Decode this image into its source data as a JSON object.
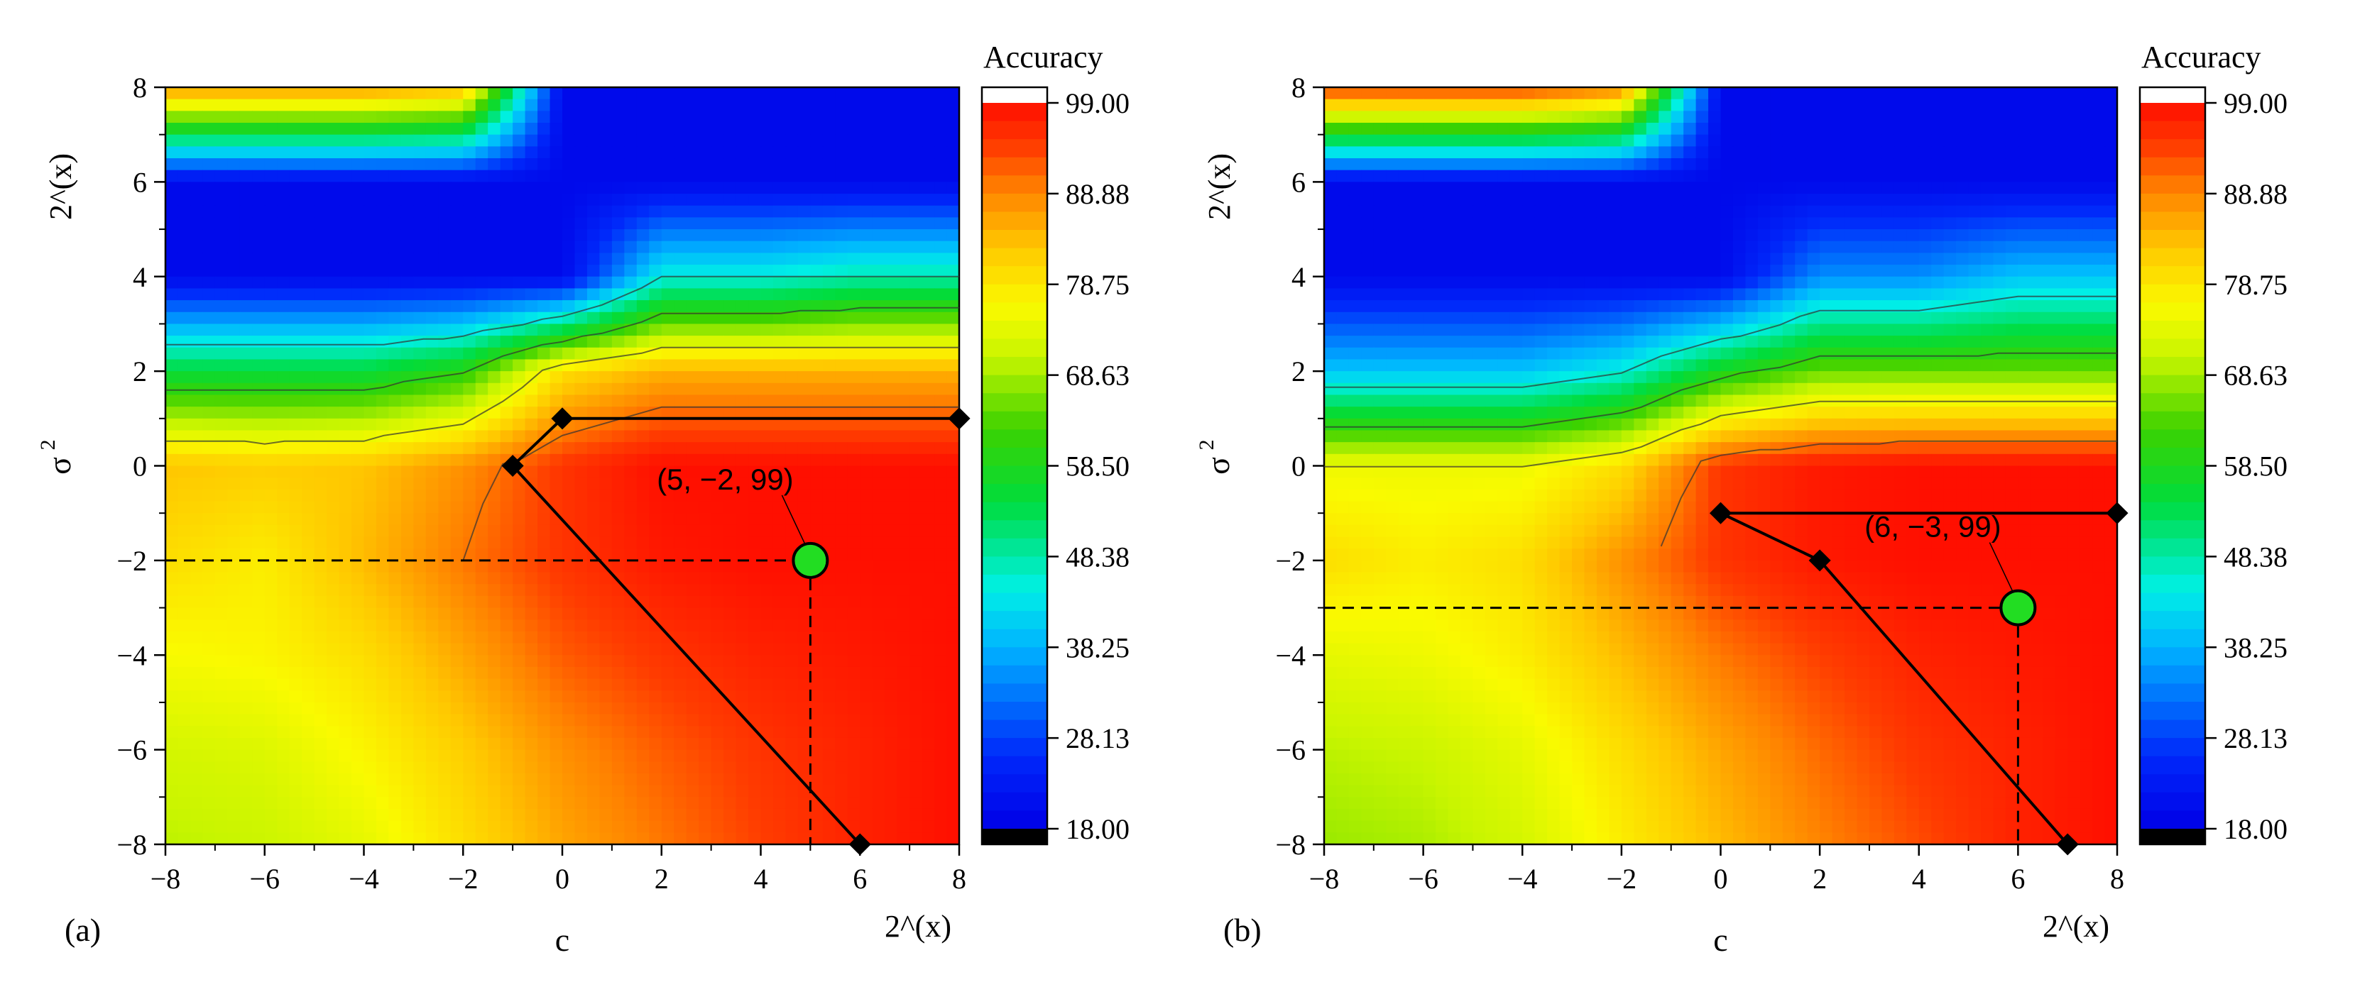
{
  "colors": {
    "low": "#0000e6",
    "high": "#ff0f00",
    "marker_fill": "#22dd22",
    "under": "#000000",
    "over": "#ffffff"
  },
  "colorbar": {
    "title": "Accuracy",
    "ticks": [
      "99.00",
      "88.88",
      "78.75",
      "68.63",
      "58.50",
      "48.38",
      "38.25",
      "28.13",
      "18.00"
    ],
    "range": [
      18,
      99
    ]
  },
  "chart_data": [
    {
      "type": "heatmap",
      "panel_label": "(a)",
      "xlabel": "c",
      "ylabel": "σ",
      "ylabel_sup": "2",
      "x_scale_label": "2^(x)",
      "y_scale_label": "2^(x)",
      "xlim": [
        -8,
        8
      ],
      "ylim": [
        -8,
        8
      ],
      "xticks": [
        "−8",
        "−6",
        "−4",
        "−2",
        "0",
        "2",
        "4",
        "6",
        "8"
      ],
      "yticks": [
        "8",
        "6",
        "4",
        "2",
        "0",
        "−2",
        "−4",
        "−6",
        "−8"
      ],
      "grid_x": [
        -8,
        -6,
        -4,
        -2,
        0,
        2,
        4,
        6,
        8
      ],
      "grid_y": [
        8,
        6,
        4,
        2,
        0,
        -2,
        -4,
        -6,
        -8
      ],
      "z": [
        [
          88,
          88,
          88,
          85,
          20,
          20,
          20,
          20,
          20
        ],
        [
          20,
          20,
          20,
          20,
          20,
          20,
          20,
          20,
          20
        ],
        [
          20,
          20,
          20,
          20,
          20,
          45,
          45,
          48,
          48
        ],
        [
          55,
          55,
          55,
          60,
          80,
          85,
          85,
          85,
          85
        ],
        [
          83,
          82,
          83,
          88,
          95,
          99,
          99,
          99,
          99
        ],
        [
          80,
          78,
          84,
          90,
          95,
          98,
          99,
          99,
          99
        ],
        [
          76,
          77,
          80,
          86,
          92,
          95,
          97,
          98,
          99
        ],
        [
          72,
          73,
          77,
          82,
          88,
          92,
          95,
          97,
          99
        ],
        [
          70,
          71,
          74,
          80,
          86,
          90,
          94,
          97,
          99
        ]
      ],
      "search_path": [
        [
          8,
          1
        ],
        [
          0,
          1
        ],
        [
          -1,
          0
        ],
        [
          6,
          -8
        ]
      ],
      "best_point": {
        "x": 5,
        "y": -2,
        "value": 99
      },
      "best_label": "(5, −2, 99)"
    },
    {
      "type": "heatmap",
      "panel_label": "(b)",
      "xlabel": "c",
      "ylabel": "σ",
      "ylabel_sup": "2",
      "x_scale_label": "2^(x)",
      "y_scale_label": "2^(x)",
      "xlim": [
        -8,
        8
      ],
      "ylim": [
        -8,
        8
      ],
      "xticks": [
        "−8",
        "−6",
        "−4",
        "−2",
        "0",
        "2",
        "4",
        "6",
        "8"
      ],
      "yticks": [
        "8",
        "6",
        "4",
        "2",
        "0",
        "−2",
        "−4",
        "−6",
        "−8"
      ],
      "grid_x": [
        -8,
        -6,
        -4,
        -2,
        0,
        2,
        4,
        6,
        8
      ],
      "grid_y": [
        8,
        6,
        4,
        2,
        0,
        -2,
        -4,
        -6,
        -8
      ],
      "z": [
        [
          95,
          95,
          95,
          90,
          20,
          20,
          20,
          20,
          20
        ],
        [
          20,
          20,
          20,
          20,
          20,
          20,
          20,
          20,
          20
        ],
        [
          20,
          20,
          20,
          20,
          20,
          35,
          35,
          40,
          40
        ],
        [
          40,
          40,
          40,
          45,
          58,
          65,
          65,
          65,
          65
        ],
        [
          75,
          75,
          75,
          80,
          95,
          98,
          99,
          99,
          99
        ],
        [
          80,
          78,
          80,
          88,
          95,
          98,
          99,
          99,
          99
        ],
        [
          74,
          75,
          78,
          84,
          90,
          94,
          97,
          98,
          99
        ],
        [
          70,
          71,
          74,
          80,
          86,
          91,
          95,
          97,
          99
        ],
        [
          68,
          69,
          72,
          78,
          84,
          89,
          93,
          97,
          99
        ]
      ],
      "search_path": [
        [
          8,
          -1
        ],
        [
          0,
          -1
        ],
        [
          2,
          -2
        ],
        [
          7,
          -8
        ]
      ],
      "best_point": {
        "x": 6,
        "y": -3,
        "value": 99
      },
      "best_label": "(6, −3, 99)"
    }
  ]
}
